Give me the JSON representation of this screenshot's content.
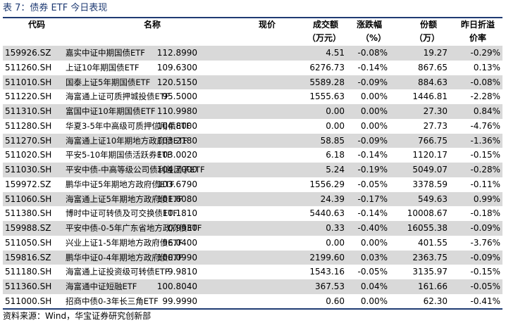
{
  "title": "表 7：债券 ETF 今日表现",
  "headers": {
    "code": "代码",
    "name": "名称",
    "price": "现价",
    "volume_line1": "成交额",
    "volume_line2": "（万元）",
    "change_line1": "涨跌幅",
    "change_line2": "（%）",
    "shares_line1": "份额",
    "shares_line2": "（万）",
    "discount_line1": "昨日折溢",
    "discount_line2": "价率"
  },
  "rows": [
    {
      "code": "159926.SZ",
      "name": "嘉实中证中期国债ETF",
      "price": "112.8990",
      "volume": "4.51",
      "change": "-0.08%",
      "shares": "19.27",
      "discount": "-0.29%"
    },
    {
      "code": "511260.SH",
      "name": "上证10年期国债ETF",
      "price": "109.6300",
      "volume": "6276.73",
      "change": "-0.14%",
      "shares": "867.65",
      "discount": "0.13%"
    },
    {
      "code": "511010.SH",
      "name": "国泰上证5年期国债ETF",
      "price": "120.5150",
      "volume": "5589.28",
      "change": "-0.09%",
      "shares": "884.63",
      "discount": "-0.08%"
    },
    {
      "code": "511220.SH",
      "name": "海富通上证可质押城投债ETF",
      "price": "95.5000",
      "volume": "1555.63",
      "change": "0.00%",
      "shares": "1446.81",
      "discount": "-2.28%"
    },
    {
      "code": "511310.SH",
      "name": "富国中证10年期国债ETF",
      "price": "110.9980",
      "volume": "0.00",
      "change": "0.00%",
      "shares": "27.30",
      "discount": "0.84%"
    },
    {
      "code": "511280.SH",
      "name": "华夏3-5年中高级可质押信用债ETF",
      "price": "104.8000",
      "volume": "0.00",
      "change": "0.00%",
      "shares": "27.73",
      "discount": "-4.76%"
    },
    {
      "code": "511270.SH",
      "name": "海富通上证10年期地方政府债ETF",
      "price": "103.2180",
      "volume": "58.85",
      "change": "-0.09%",
      "shares": "766.75",
      "discount": "-1.36%"
    },
    {
      "code": "511020.SH",
      "name": "平安5-10年期国债活跃券ETF",
      "price": "103.0020",
      "volume": "6.18",
      "change": "-0.14%",
      "shares": "1120.17",
      "discount": "-0.15%"
    },
    {
      "code": "511030.SH",
      "name": "平安中债-中高等级公司债利差因子ETF",
      "price": "104.7000",
      "volume": "5.24",
      "change": "-0.19%",
      "shares": "5049.07",
      "discount": "-0.28%"
    },
    {
      "code": "159972.SZ",
      "name": "鹏华中证5年期地方政府债ETF",
      "price": "103.6790",
      "volume": "1556.29",
      "change": "-0.05%",
      "shares": "3378.59",
      "discount": "-0.11%"
    },
    {
      "code": "511060.SH",
      "name": "海富通上证5年期地方政府债ETF",
      "price": "101.6080",
      "volume": "24.39",
      "change": "-0.17%",
      "shares": "549.63",
      "discount": "0.99%"
    },
    {
      "code": "511380.SH",
      "name": "博时中证可转债及可交换债ETF",
      "price": "10.1810",
      "volume": "5440.63",
      "change": "-0.14%",
      "shares": "10008.67",
      "discount": "-0.18%"
    },
    {
      "code": "159988.SZ",
      "name": "平安中债-0-5年广东省地方政府债ETF",
      "price": "0.9930",
      "volume": "0.33",
      "change": "-0.40%",
      "shares": "16055.38",
      "discount": "-0.09%"
    },
    {
      "code": "511050.SH",
      "name": "兴业上证1-5年期地方政府债ETF",
      "price": "96.0400",
      "volume": "0.00",
      "change": "0.00%",
      "shares": "401.55",
      "discount": "-3.76%"
    },
    {
      "code": "159816.SZ",
      "name": "鹏华中证0-4年期地方政府债ETF",
      "price": "100.0990",
      "volume": "2199.60",
      "change": "0.03%",
      "shares": "2363.75",
      "discount": "-0.09%"
    },
    {
      "code": "511180.SH",
      "name": "海富通上证投资级可转债ETF",
      "price": "9.9810",
      "volume": "1543.16",
      "change": "-0.05%",
      "shares": "3135.97",
      "discount": "-0.15%"
    },
    {
      "code": "511360.SH",
      "name": "海富通中证短融ETF",
      "price": "100.8040",
      "volume": "367.53",
      "change": "0.04%",
      "shares": "161.66",
      "discount": "-0.05%"
    },
    {
      "code": "511000.SH",
      "name": "招商中债0-3年长三角ETF",
      "price": "99.9990",
      "volume": "0.60",
      "change": "0.00%",
      "shares": "62.30",
      "discount": "-0.41%"
    }
  ],
  "source": "资料来源：Wind，华宝证券研究创新部",
  "colors": {
    "accent": "#1f3b73",
    "row_shade": "#d9d9d9"
  }
}
